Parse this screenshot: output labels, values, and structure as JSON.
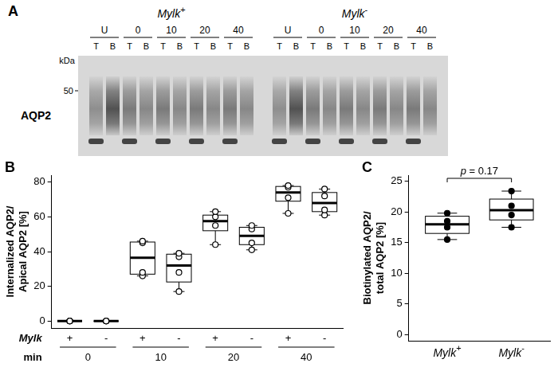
{
  "blot": {
    "title": "A",
    "genotypes": [
      "Mylk+",
      "Mylk-"
    ],
    "conditions": [
      "U",
      0,
      10,
      20,
      40
    ],
    "fractions": [
      "T",
      "B"
    ],
    "marker_unit": "kDa",
    "markers": [
      50
    ],
    "protein": "AQP2"
  },
  "chart_data": [
    {
      "type": "box",
      "title": "B",
      "categories": [
        "+",
        "-",
        "+",
        "-",
        "+",
        "-",
        "+",
        "-"
      ],
      "groups": [
        0,
        10,
        20,
        40
      ],
      "row_labels": [
        "Mylk",
        "min"
      ],
      "y_label": [
        "Internalized AQP2/",
        "Apical AQP2 [%]"
      ],
      "ylim": [
        -4,
        84
      ],
      "yticks": [
        0,
        20,
        40,
        60,
        80
      ],
      "grid": false,
      "color": "#000000",
      "marker": "open_circle",
      "values": [
        {
          "min": 0,
          "q1": 0,
          "median": 0,
          "q3": 0,
          "max": 0,
          "points": [
            0,
            0,
            0,
            0
          ]
        },
        {
          "min": 0,
          "q1": 0,
          "median": 0,
          "q3": 0,
          "max": 0,
          "points": [
            0,
            0,
            0,
            0
          ]
        },
        {
          "min": 26,
          "q1": 27,
          "median": 36.5,
          "q3": 45.5,
          "max": 46,
          "points": [
            26,
            28,
            45,
            46
          ]
        },
        {
          "min": 17,
          "q1": 22.5,
          "median": 32,
          "q3": 38.5,
          "max": 39,
          "points": [
            17,
            28,
            37,
            39
          ]
        },
        {
          "min": 44,
          "q1": 52,
          "median": 57.5,
          "q3": 61,
          "max": 63,
          "points": [
            44,
            55,
            60,
            63
          ]
        },
        {
          "min": 41,
          "q1": 44,
          "median": 49,
          "q3": 54,
          "max": 55,
          "points": [
            41,
            45,
            53,
            55
          ]
        },
        {
          "min": 62,
          "q1": 69,
          "median": 74,
          "q3": 77.5,
          "max": 78,
          "points": [
            62,
            71,
            77,
            78
          ]
        },
        {
          "min": 61,
          "q1": 63,
          "median": 68,
          "q3": 74,
          "max": 76,
          "points": [
            61,
            64,
            72,
            76
          ]
        }
      ]
    },
    {
      "type": "box",
      "title": "C",
      "categories": [
        "Mylk+",
        "Mylk-"
      ],
      "y_label": [
        "Biotinylated AQP2/",
        "total AQP2 [%]"
      ],
      "ylim": [
        -1,
        26
      ],
      "yticks": [
        0,
        5,
        10,
        15,
        20,
        25
      ],
      "grid": false,
      "color": "#000000",
      "marker": "circle",
      "annotations": [
        "p = 0.17"
      ],
      "values": [
        {
          "min": 15.5,
          "q1": 16.5,
          "median": 18,
          "q3": 19.3,
          "max": 19.8,
          "points": [
            15.5,
            17.5,
            18.5,
            19.8
          ]
        },
        {
          "min": 17.5,
          "q1": 18.7,
          "median": 20.3,
          "q3": 22.1,
          "max": 23.4,
          "points": [
            17.5,
            19.5,
            21,
            23.4
          ]
        }
      ]
    }
  ]
}
